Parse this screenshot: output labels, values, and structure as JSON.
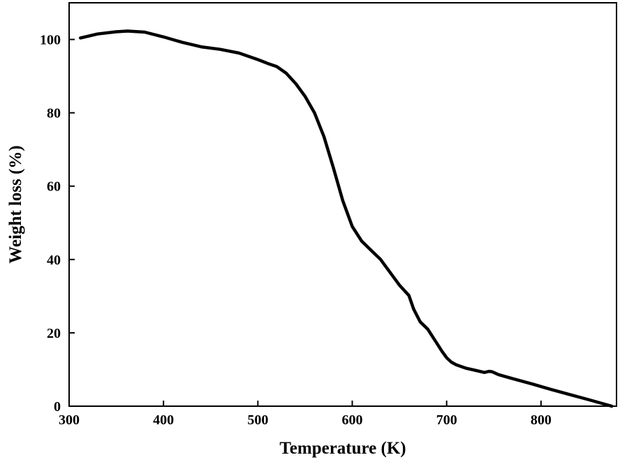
{
  "chart_data": {
    "type": "line",
    "title": "",
    "xlabel": "Temperature (K)",
    "ylabel": "Weight loss (%)",
    "xlim": [
      300,
      880
    ],
    "ylim": [
      0,
      110
    ],
    "xticks": [
      300,
      400,
      500,
      600,
      700,
      800
    ],
    "yticks": [
      0,
      20,
      40,
      60,
      80,
      100
    ],
    "grid": false,
    "colors": {
      "line": "#000000",
      "axis": "#000000",
      "background": "#ffffff"
    },
    "series": [
      {
        "x": [
          312,
          330,
          350,
          362,
          380,
          400,
          420,
          440,
          460,
          480,
          500,
          510,
          520,
          530,
          540,
          550,
          560,
          570,
          580,
          590,
          600,
          610,
          620,
          630,
          640,
          650,
          660,
          665,
          668,
          672,
          676,
          680,
          685,
          690,
          695,
          700,
          705,
          710,
          720,
          730,
          740,
          745,
          748,
          755,
          770,
          790,
          810,
          830,
          850,
          875
        ],
        "y": [
          100.4,
          101.5,
          102.1,
          102.3,
          102.0,
          100.7,
          99.2,
          98.0,
          97.3,
          96.3,
          94.5,
          93.5,
          92.6,
          90.8,
          88.0,
          84.5,
          80.0,
          73.5,
          65.0,
          56.0,
          49.0,
          45.0,
          42.5,
          40.0,
          36.5,
          33.0,
          30.2,
          26.5,
          25.0,
          23.0,
          22.0,
          21.0,
          19.0,
          17.0,
          15.0,
          13.2,
          12.0,
          11.3,
          10.4,
          9.8,
          9.2,
          9.5,
          9.4,
          8.6,
          7.5,
          6.1,
          4.6,
          3.2,
          1.8,
          0.0
        ]
      }
    ]
  }
}
